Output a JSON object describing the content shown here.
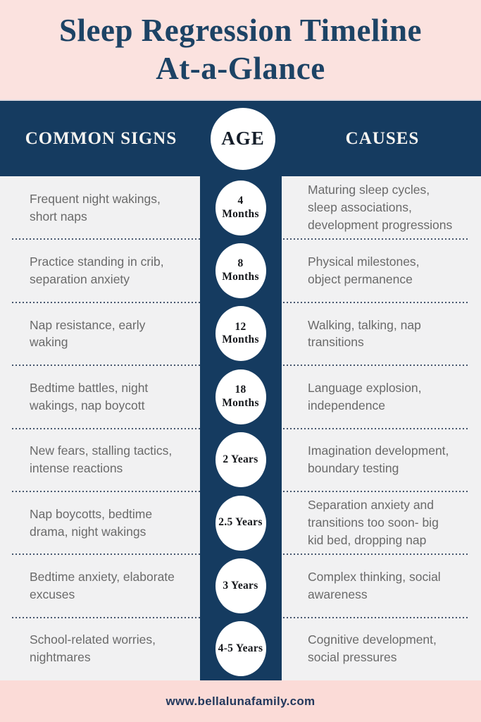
{
  "colors": {
    "navy": "#153b60",
    "header_pink": "#fbe2df",
    "footer_pink": "#fbdbd7",
    "body_gray": "#f1f1f2",
    "title_navy": "#1d4365",
    "body_text_gray": "#6a6a6a",
    "dotted_separator": "#46566d",
    "circle_white": "#ffffff"
  },
  "header": {
    "title_line1": "Sleep Regression Timeline",
    "title_line2": "At-a-Glance"
  },
  "columns": {
    "left_label": "COMMON SIGNS",
    "center_label": "AGE",
    "right_label": "CAUSES"
  },
  "timeline": {
    "rows": [
      {
        "age": "4 Months",
        "age_lines": [
          "4",
          "Months"
        ],
        "signs": "Frequent night wakings, short naps",
        "signs_lines": [
          "Frequent night wakings,",
          "short naps"
        ],
        "causes": "Maturing sleep cycles, sleep associations, development progressions",
        "causes_lines": [
          "Maturing sleep cycles,",
          "sleep associations,",
          "development progressions"
        ]
      },
      {
        "age": "8 Months",
        "age_lines": [
          "8",
          "Months"
        ],
        "signs": "Practice standing in crib, separation anxiety",
        "signs_lines": [
          "Practice standing in crib,",
          "separation anxiety"
        ],
        "causes": "Physical milestones, object permanence",
        "causes_lines": [
          "Physical milestones,",
          "object permanence"
        ]
      },
      {
        "age": "12 Months",
        "age_lines": [
          "12",
          "Months"
        ],
        "signs": "Nap resistance, early waking",
        "signs_lines": [
          "Nap resistance, early",
          "waking"
        ],
        "causes": "Walking, talking, nap transitions",
        "causes_lines": [
          "Walking, talking, nap",
          "transitions"
        ]
      },
      {
        "age": "18 Months",
        "age_lines": [
          "18",
          "Months"
        ],
        "signs": "Bedtime battles, night wakings, nap boycott",
        "signs_lines": [
          "Bedtime battles, night",
          "wakings, nap boycott"
        ],
        "causes": "Language explosion, independence",
        "causes_lines": [
          "Language explosion,",
          "independence"
        ]
      },
      {
        "age": "2 Years",
        "age_lines": [
          "2 Years"
        ],
        "signs": "New fears, stalling tactics, intense reactions",
        "signs_lines": [
          "New fears, stalling tactics,",
          "intense reactions"
        ],
        "causes": "Imagination development, boundary testing",
        "causes_lines": [
          "Imagination development,",
          "boundary testing"
        ]
      },
      {
        "age": "2.5 Years",
        "age_lines": [
          "2.5 Years"
        ],
        "signs": "Nap boycotts, bedtime drama, night wakings",
        "signs_lines": [
          "Nap boycotts, bedtime",
          "drama, night wakings"
        ],
        "causes": "Separation anxiety and transitions too soon- big kid bed, dropping nap",
        "causes_lines": [
          "Separation anxiety and",
          "transitions too soon- big",
          "kid bed, dropping nap"
        ]
      },
      {
        "age": "3 Years",
        "age_lines": [
          "3 Years"
        ],
        "signs": "Bedtime anxiety, elaborate excuses",
        "signs_lines": [
          "Bedtime anxiety, elaborate",
          "excuses"
        ],
        "causes": "Complex thinking, social awareness",
        "causes_lines": [
          "Complex thinking, social",
          "awareness"
        ]
      },
      {
        "age": "4-5 Years",
        "age_lines": [
          "4-5 Years"
        ],
        "signs": "School-related worries, nightmares",
        "signs_lines": [
          "School-related worries,",
          "nightmares"
        ],
        "causes": "Cognitive development, social pressures",
        "causes_lines": [
          "Cognitive development,",
          "social pressures"
        ]
      }
    ]
  },
  "footer": {
    "website": "www.bellalunafamily.com"
  }
}
